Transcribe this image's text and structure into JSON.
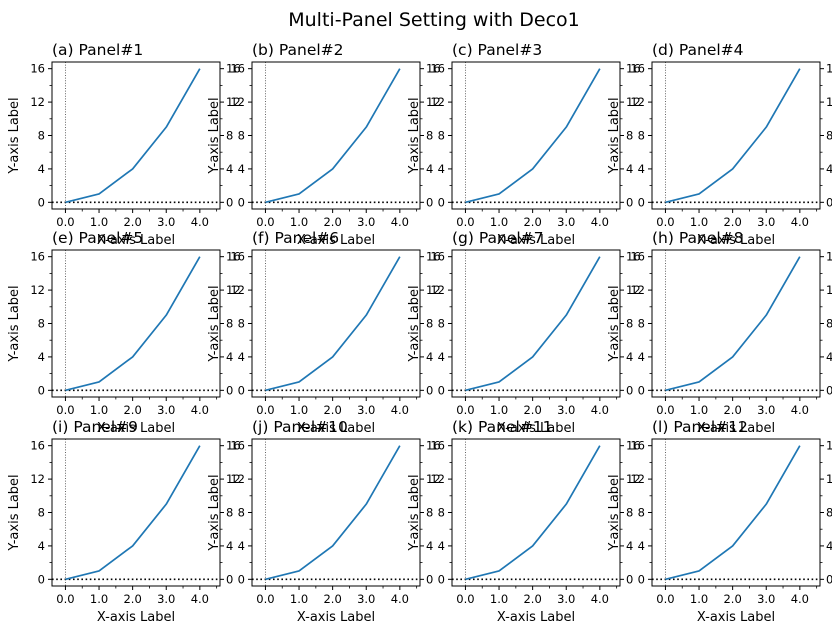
{
  "figure": {
    "title": "Multi-Panel Setting with Deco1",
    "rows": 3,
    "cols": 4
  },
  "chart_data": [
    {
      "type": "line",
      "title": "(a) Panel#1",
      "xlabel": "X-axis Label",
      "ylabel": "Y-axis Label",
      "x": [
        0,
        1,
        2,
        3,
        4
      ],
      "series": [
        {
          "values": [
            0,
            1,
            4,
            9,
            16
          ],
          "color": "#1f77b4"
        }
      ],
      "xticks": [
        "0.0",
        "1.0",
        "2.0",
        "3.0",
        "4.0"
      ],
      "yticks": [
        "0",
        "4",
        "8",
        "12",
        "16"
      ],
      "xlim": [
        -0.4,
        4.6
      ],
      "ylim": [
        -0.8,
        16.8
      ],
      "hline": {
        "y": 0,
        "style": "dotted"
      },
      "vline": {
        "x": 0,
        "style": "dotted"
      }
    },
    {
      "type": "line",
      "title": "(b) Panel#2",
      "xlabel": "X-axis Label",
      "ylabel": "Y-axis Label",
      "x": [
        0,
        1,
        2,
        3,
        4
      ],
      "series": [
        {
          "values": [
            0,
            1,
            4,
            9,
            16
          ],
          "color": "#1f77b4"
        }
      ],
      "xticks": [
        "0.0",
        "1.0",
        "2.0",
        "3.0",
        "4.0"
      ],
      "yticks": [
        "0",
        "4",
        "8",
        "12",
        "16"
      ],
      "xlim": [
        -0.4,
        4.6
      ],
      "ylim": [
        -0.8,
        16.8
      ],
      "hline": {
        "y": 0,
        "style": "dotted"
      },
      "vline": {
        "x": 0,
        "style": "dotted"
      }
    },
    {
      "type": "line",
      "title": "(c) Panel#3",
      "xlabel": "X-axis Label",
      "ylabel": "Y-axis Label",
      "x": [
        0,
        1,
        2,
        3,
        4
      ],
      "series": [
        {
          "values": [
            0,
            1,
            4,
            9,
            16
          ],
          "color": "#1f77b4"
        }
      ],
      "xticks": [
        "0.0",
        "1.0",
        "2.0",
        "3.0",
        "4.0"
      ],
      "yticks": [
        "0",
        "4",
        "8",
        "12",
        "16"
      ],
      "xlim": [
        -0.4,
        4.6
      ],
      "ylim": [
        -0.8,
        16.8
      ],
      "hline": {
        "y": 0,
        "style": "dotted"
      },
      "vline": {
        "x": 0,
        "style": "dotted"
      }
    },
    {
      "type": "line",
      "title": "(d) Panel#4",
      "xlabel": "X-axis Label",
      "ylabel": "Y-axis Label",
      "x": [
        0,
        1,
        2,
        3,
        4
      ],
      "series": [
        {
          "values": [
            0,
            1,
            4,
            9,
            16
          ],
          "color": "#1f77b4"
        }
      ],
      "xticks": [
        "0.0",
        "1.0",
        "2.0",
        "3.0",
        "4.0"
      ],
      "yticks": [
        "0",
        "4",
        "8",
        "12",
        "16"
      ],
      "xlim": [
        -0.4,
        4.6
      ],
      "ylim": [
        -0.8,
        16.8
      ],
      "hline": {
        "y": 0,
        "style": "dotted"
      },
      "vline": {
        "x": 0,
        "style": "dotted"
      }
    },
    {
      "type": "line",
      "title": "(e) Panel#5",
      "xlabel": "X-axis Label",
      "ylabel": "Y-axis Label",
      "x": [
        0,
        1,
        2,
        3,
        4
      ],
      "series": [
        {
          "values": [
            0,
            1,
            4,
            9,
            16
          ],
          "color": "#1f77b4"
        }
      ],
      "xticks": [
        "0.0",
        "1.0",
        "2.0",
        "3.0",
        "4.0"
      ],
      "yticks": [
        "0",
        "4",
        "8",
        "12",
        "16"
      ],
      "xlim": [
        -0.4,
        4.6
      ],
      "ylim": [
        -0.8,
        16.8
      ],
      "hline": {
        "y": 0,
        "style": "dotted"
      },
      "vline": {
        "x": 0,
        "style": "dotted"
      }
    },
    {
      "type": "line",
      "title": "(f) Panel#6",
      "xlabel": "X-axis Label",
      "ylabel": "Y-axis Label",
      "x": [
        0,
        1,
        2,
        3,
        4
      ],
      "series": [
        {
          "values": [
            0,
            1,
            4,
            9,
            16
          ],
          "color": "#1f77b4"
        }
      ],
      "xticks": [
        "0.0",
        "1.0",
        "2.0",
        "3.0",
        "4.0"
      ],
      "yticks": [
        "0",
        "4",
        "8",
        "12",
        "16"
      ],
      "xlim": [
        -0.4,
        4.6
      ],
      "ylim": [
        -0.8,
        16.8
      ],
      "hline": {
        "y": 0,
        "style": "dotted"
      },
      "vline": {
        "x": 0,
        "style": "dotted"
      }
    },
    {
      "type": "line",
      "title": "(g) Panel#7",
      "xlabel": "X-axis Label",
      "ylabel": "Y-axis Label",
      "x": [
        0,
        1,
        2,
        3,
        4
      ],
      "series": [
        {
          "values": [
            0,
            1,
            4,
            9,
            16
          ],
          "color": "#1f77b4"
        }
      ],
      "xticks": [
        "0.0",
        "1.0",
        "2.0",
        "3.0",
        "4.0"
      ],
      "yticks": [
        "0",
        "4",
        "8",
        "12",
        "16"
      ],
      "xlim": [
        -0.4,
        4.6
      ],
      "ylim": [
        -0.8,
        16.8
      ],
      "hline": {
        "y": 0,
        "style": "dotted"
      },
      "vline": {
        "x": 0,
        "style": "dotted"
      }
    },
    {
      "type": "line",
      "title": "(h) Panel#8",
      "xlabel": "X-axis Label",
      "ylabel": "Y-axis Label",
      "x": [
        0,
        1,
        2,
        3,
        4
      ],
      "series": [
        {
          "values": [
            0,
            1,
            4,
            9,
            16
          ],
          "color": "#1f77b4"
        }
      ],
      "xticks": [
        "0.0",
        "1.0",
        "2.0",
        "3.0",
        "4.0"
      ],
      "yticks": [
        "0",
        "4",
        "8",
        "12",
        "16"
      ],
      "xlim": [
        -0.4,
        4.6
      ],
      "ylim": [
        -0.8,
        16.8
      ],
      "hline": {
        "y": 0,
        "style": "dotted"
      },
      "vline": {
        "x": 0,
        "style": "dotted"
      }
    },
    {
      "type": "line",
      "title": "(i) Panel#9",
      "xlabel": "X-axis Label",
      "ylabel": "Y-axis Label",
      "x": [
        0,
        1,
        2,
        3,
        4
      ],
      "series": [
        {
          "values": [
            0,
            1,
            4,
            9,
            16
          ],
          "color": "#1f77b4"
        }
      ],
      "xticks": [
        "0.0",
        "1.0",
        "2.0",
        "3.0",
        "4.0"
      ],
      "yticks": [
        "0",
        "4",
        "8",
        "12",
        "16"
      ],
      "xlim": [
        -0.4,
        4.6
      ],
      "ylim": [
        -0.8,
        16.8
      ],
      "hline": {
        "y": 0,
        "style": "dotted"
      },
      "vline": {
        "x": 0,
        "style": "dotted"
      }
    },
    {
      "type": "line",
      "title": "(j) Panel#10",
      "xlabel": "X-axis Label",
      "ylabel": "Y-axis Label",
      "x": [
        0,
        1,
        2,
        3,
        4
      ],
      "series": [
        {
          "values": [
            0,
            1,
            4,
            9,
            16
          ],
          "color": "#1f77b4"
        }
      ],
      "xticks": [
        "0.0",
        "1.0",
        "2.0",
        "3.0",
        "4.0"
      ],
      "yticks": [
        "0",
        "4",
        "8",
        "12",
        "16"
      ],
      "xlim": [
        -0.4,
        4.6
      ],
      "ylim": [
        -0.8,
        16.8
      ],
      "hline": {
        "y": 0,
        "style": "dotted"
      },
      "vline": {
        "x": 0,
        "style": "dotted"
      }
    },
    {
      "type": "line",
      "title": "(k) Panel#11",
      "xlabel": "X-axis Label",
      "ylabel": "Y-axis Label",
      "x": [
        0,
        1,
        2,
        3,
        4
      ],
      "series": [
        {
          "values": [
            0,
            1,
            4,
            9,
            16
          ],
          "color": "#1f77b4"
        }
      ],
      "xticks": [
        "0.0",
        "1.0",
        "2.0",
        "3.0",
        "4.0"
      ],
      "yticks": [
        "0",
        "4",
        "8",
        "12",
        "16"
      ],
      "xlim": [
        -0.4,
        4.6
      ],
      "ylim": [
        -0.8,
        16.8
      ],
      "hline": {
        "y": 0,
        "style": "dotted"
      },
      "vline": {
        "x": 0,
        "style": "dotted"
      }
    },
    {
      "type": "line",
      "title": "(l) Panel#12",
      "xlabel": "X-axis Label",
      "ylabel": "Y-axis Label",
      "x": [
        0,
        1,
        2,
        3,
        4
      ],
      "series": [
        {
          "values": [
            0,
            1,
            4,
            9,
            16
          ],
          "color": "#1f77b4"
        }
      ],
      "xticks": [
        "0.0",
        "1.0",
        "2.0",
        "3.0",
        "4.0"
      ],
      "yticks": [
        "0",
        "4",
        "8",
        "12",
        "16"
      ],
      "xlim": [
        -0.4,
        4.6
      ],
      "ylim": [
        -0.8,
        16.8
      ],
      "hline": {
        "y": 0,
        "style": "dotted"
      },
      "vline": {
        "x": 0,
        "style": "dotted"
      }
    }
  ]
}
